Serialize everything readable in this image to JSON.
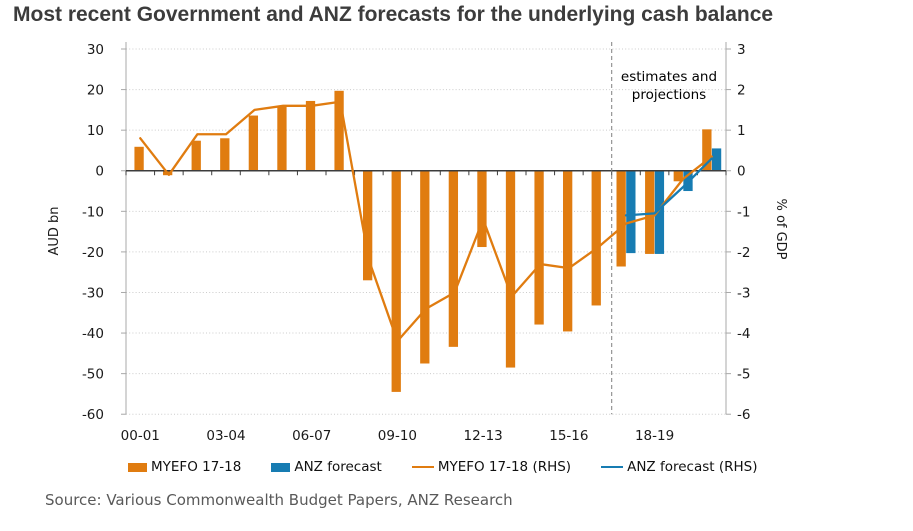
{
  "title": "Most recent Government and ANZ forecasts for the underlying cash balance",
  "source": "Source: Various Commonwealth Budget Papers, ANZ Research",
  "annotation": {
    "line1": "estimates and",
    "line2": "projections"
  },
  "axes": {
    "left_label": "AUD bn",
    "right_label": "% of GDP",
    "left_ticks": [
      30,
      20,
      10,
      0,
      -10,
      -20,
      -30,
      -40,
      -50,
      -60
    ],
    "right_ticks": [
      3,
      2,
      1,
      0,
      -1,
      -2,
      -3,
      -4,
      -5,
      -6
    ],
    "x_tick_labels": [
      "00-01",
      "03-04",
      "06-07",
      "09-10",
      "12-13",
      "15-16",
      "18-19"
    ]
  },
  "colors": {
    "orange": "#E07C10",
    "blue": "#177CB2",
    "grid": "#CCCCCC",
    "axis": "#3C3C3C",
    "border": "#A8A8A8",
    "divider": "#7F7F7F",
    "title_text": "#3C3C3C",
    "source_text": "#595959",
    "tick_text": "#1A1A1A"
  },
  "chart_data": {
    "type": "bar",
    "subtype": "bar-line-combo-dual-axis",
    "title": "Most recent Government and ANZ forecasts for the underlying cash balance",
    "categories": [
      "00-01",
      "01-02",
      "02-03",
      "03-04",
      "04-05",
      "05-06",
      "06-07",
      "07-08",
      "08-09",
      "09-10",
      "10-11",
      "11-12",
      "12-13",
      "13-14",
      "14-15",
      "15-16",
      "16-17",
      "17-18",
      "18-19",
      "19-20",
      "20-21"
    ],
    "xlabel": "",
    "ylabel_left": "AUD bn",
    "ylabel_right": "% of GDP",
    "ylim_left": [
      -60,
      30
    ],
    "ylim_right": [
      -6,
      3
    ],
    "grid": "horizontal-dotted",
    "legend_position": "bottom",
    "divider_between": [
      "16-17",
      "17-18"
    ],
    "series": [
      {
        "name": "MYEFO 17-18",
        "type": "bar",
        "axis": "left",
        "color": "#E07C10",
        "values": [
          5.9,
          -1.1,
          7.4,
          8.0,
          13.6,
          15.8,
          17.2,
          19.7,
          -27.0,
          -54.5,
          -47.5,
          -43.4,
          -18.8,
          -48.5,
          -37.9,
          -39.6,
          -33.2,
          -23.6,
          -20.5,
          -2.6,
          10.2
        ]
      },
      {
        "name": "ANZ forecast",
        "type": "bar",
        "axis": "left",
        "color": "#177CB2",
        "values": [
          null,
          null,
          null,
          null,
          null,
          null,
          null,
          null,
          null,
          null,
          null,
          null,
          null,
          null,
          null,
          null,
          null,
          -20.3,
          -20.5,
          -5.0,
          5.5
        ]
      },
      {
        "name": "MYEFO 17-18 (RHS)",
        "type": "line",
        "axis": "right",
        "color": "#E07C10",
        "values": [
          0.8,
          -0.1,
          0.9,
          0.9,
          1.5,
          1.6,
          1.6,
          1.7,
          -2.2,
          -4.2,
          -3.4,
          -3.0,
          -1.2,
          -3.1,
          -2.3,
          -2.4,
          -1.9,
          -1.3,
          -1.1,
          -0.2,
          0.35
        ]
      },
      {
        "name": "ANZ forecast (RHS)",
        "type": "line",
        "axis": "right",
        "color": "#177CB2",
        "values": [
          null,
          null,
          null,
          null,
          null,
          null,
          null,
          null,
          null,
          null,
          null,
          null,
          null,
          null,
          null,
          null,
          null,
          -1.1,
          -1.05,
          -0.4,
          0.3
        ]
      }
    ]
  }
}
